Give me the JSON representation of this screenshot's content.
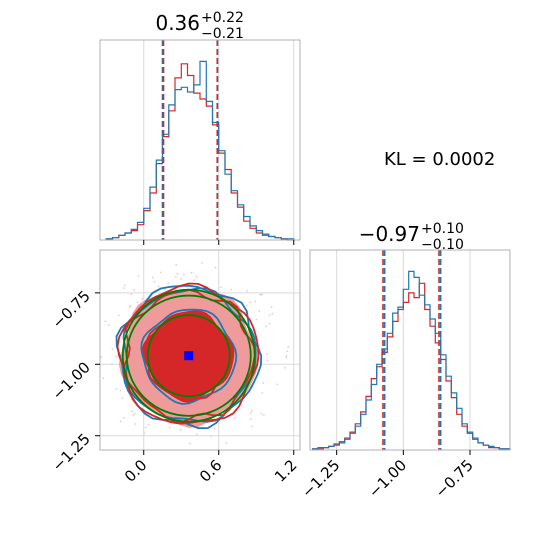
{
  "chart_data": {
    "type": "corner",
    "kl_text": "KL = 0.0002",
    "colors": {
      "series_a": "#1f77b4",
      "series_b": "#d62728",
      "contour_green": "#008000",
      "truth_marker": "#0000ff",
      "fill_light": "#f09b9b",
      "fill_dark": "#d62728"
    },
    "panels": [
      {
        "type": "histogram",
        "parameter_index": 0,
        "title": {
          "main": "0.36",
          "sup": "+0.22",
          "sub": "−0.21"
        },
        "xlim": [
          -0.35,
          1.25
        ],
        "quantile_lines": [
          0.15,
          0.58
        ],
        "quantile_lines_b": [
          0.15,
          0.59
        ],
        "bins": [
          -0.3,
          -0.25,
          -0.2,
          -0.15,
          -0.1,
          -0.05,
          0.0,
          0.05,
          0.1,
          0.15,
          0.2,
          0.25,
          0.3,
          0.35,
          0.4,
          0.45,
          0.5,
          0.55,
          0.6,
          0.65,
          0.7,
          0.75,
          0.8,
          0.85,
          0.9,
          0.95,
          1.0,
          1.05,
          1.1,
          1.15,
          1.2
        ],
        "series_a": [
          1,
          2,
          4,
          6,
          9,
          15,
          27,
          45,
          68,
          90,
          115,
          128,
          130,
          126,
          132,
          152,
          118,
          100,
          76,
          56,
          42,
          30,
          20,
          12,
          8,
          5,
          3,
          2,
          1,
          1
        ],
        "series_b": [
          1,
          2,
          4,
          6,
          8,
          13,
          25,
          40,
          65,
          88,
          110,
          138,
          150,
          140,
          125,
          120,
          114,
          98,
          74,
          60,
          40,
          28,
          16,
          10,
          6,
          4,
          3,
          2,
          1,
          0
        ]
      },
      {
        "type": "contour2d",
        "xlim": [
          -0.35,
          1.25
        ],
        "ylim": [
          -1.3,
          -0.6
        ],
        "xticks": [
          "0.0",
          "0.6",
          "1.2"
        ],
        "yticks": [
          "−0.75",
          "−1.00",
          "−1.25"
        ],
        "truth": [
          0.36,
          -0.97
        ]
      },
      {
        "type": "histogram",
        "parameter_index": 1,
        "title": {
          "main": "−0.97",
          "sup": "+0.10",
          "sub": "−0.10"
        },
        "xlim": [
          -1.35,
          -0.6
        ],
        "xticks": [
          "−1.25",
          "−1.00",
          "−0.75"
        ],
        "quantile_lines": [
          -1.08,
          -0.87
        ],
        "quantile_lines_b": [
          -1.07,
          -0.86
        ],
        "bins": [
          -1.34,
          -1.32,
          -1.3,
          -1.28,
          -1.26,
          -1.24,
          -1.22,
          -1.2,
          -1.18,
          -1.16,
          -1.14,
          -1.12,
          -1.1,
          -1.08,
          -1.06,
          -1.04,
          -1.02,
          -1.0,
          -0.98,
          -0.96,
          -0.94,
          -0.92,
          -0.9,
          -0.88,
          -0.86,
          -0.84,
          -0.82,
          -0.8,
          -0.78,
          -0.76,
          -0.74,
          -0.72,
          -0.7,
          -0.68,
          -0.66,
          -0.64,
          -0.62,
          -0.6
        ],
        "series_a": [
          1,
          2,
          2,
          3,
          4,
          6,
          9,
          14,
          20,
          30,
          42,
          55,
          72,
          85,
          98,
          115,
          120,
          135,
          150,
          145,
          130,
          122,
          110,
          98,
          80,
          62,
          48,
          35,
          22,
          15,
          10,
          6,
          4,
          3,
          2,
          1,
          1
        ],
        "series_b": [
          1,
          1,
          2,
          3,
          5,
          7,
          10,
          15,
          22,
          32,
          45,
          60,
          70,
          82,
          95,
          108,
          118,
          124,
          132,
          128,
          140,
          118,
          104,
          90,
          76,
          58,
          44,
          30,
          20,
          14,
          9,
          6,
          4,
          2,
          2,
          1,
          1
        ]
      }
    ]
  }
}
